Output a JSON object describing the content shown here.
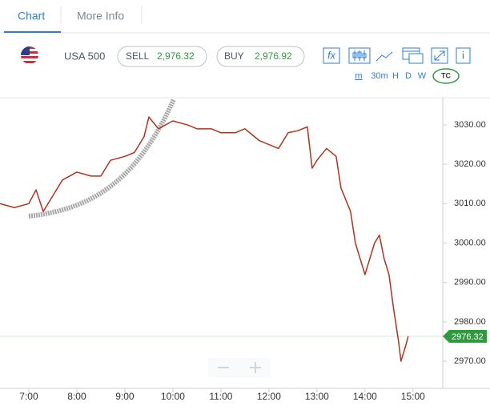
{
  "tabs": [
    "Chart",
    "More Info"
  ],
  "instrument": "USA 500",
  "sell": {
    "label": "SELL",
    "price": "2,976.32"
  },
  "buy": {
    "label": "BUY",
    "price": "2,976.92"
  },
  "function_button": "fx",
  "info_button": "i",
  "timeframes": [
    "m",
    "30m",
    "H",
    "D",
    "W"
  ],
  "tc_badge": "TC",
  "chart_data": {
    "type": "line",
    "x": [
      6.4,
      6.7,
      7.0,
      7.15,
      7.3,
      7.5,
      7.7,
      8.0,
      8.3,
      8.5,
      8.7,
      9.0,
      9.2,
      9.4,
      9.5,
      9.7,
      10.0,
      10.3,
      10.5,
      10.8,
      11.0,
      11.3,
      11.5,
      11.8,
      12.0,
      12.2,
      12.4,
      12.6,
      12.8,
      12.9,
      13.0,
      13.2,
      13.4,
      13.5,
      13.7,
      13.8,
      13.9,
      14.0,
      14.1,
      14.2,
      14.3,
      14.4,
      14.5,
      14.6,
      14.7,
      14.75,
      14.85,
      14.9
    ],
    "series": [
      {
        "color": "#b0331c",
        "values": [
          3010,
          3009,
          3010,
          3013.5,
          3008,
          3012,
          3016,
          3018,
          3017,
          3017,
          3021,
          3022,
          3023,
          3027,
          3032,
          3029,
          3031,
          3030,
          3029,
          3029,
          3028,
          3028,
          3029,
          3026,
          3025,
          3024,
          3028,
          3028.5,
          3029.5,
          3019,
          3021,
          3024,
          3022,
          3014,
          3008,
          3000,
          2996,
          2992,
          2996,
          3000,
          3002,
          2996,
          2992,
          2983,
          2975,
          2970,
          2974,
          2976.3
        ]
      }
    ],
    "xlim": [
      6.4,
      15.62
    ],
    "ylim": [
      2963.1,
      3036.9
    ],
    "xticks": [
      {
        "value": 7,
        "label": "7:00"
      },
      {
        "value": 8,
        "label": "8:00"
      },
      {
        "value": 9,
        "label": "9:00"
      },
      {
        "value": 10,
        "label": "10:00"
      },
      {
        "value": 11,
        "label": "11:00"
      },
      {
        "value": 12,
        "label": "12:00"
      },
      {
        "value": 13,
        "label": "13:00"
      },
      {
        "value": 14,
        "label": "14:00"
      },
      {
        "value": 15,
        "label": "15:00"
      }
    ],
    "yticks": [
      {
        "value": 2970,
        "label": "2970.00"
      },
      {
        "value": 2980,
        "label": "2980.00"
      },
      {
        "value": 2990,
        "label": "2990.00"
      },
      {
        "value": 3000,
        "label": "3000.00"
      },
      {
        "value": 3010,
        "label": "3010.00"
      },
      {
        "value": 3020,
        "label": "3020.00"
      },
      {
        "value": 3030,
        "label": "3030.00"
      }
    ],
    "last_price": 2976.32,
    "last_price_color": "#2e9a3e"
  }
}
